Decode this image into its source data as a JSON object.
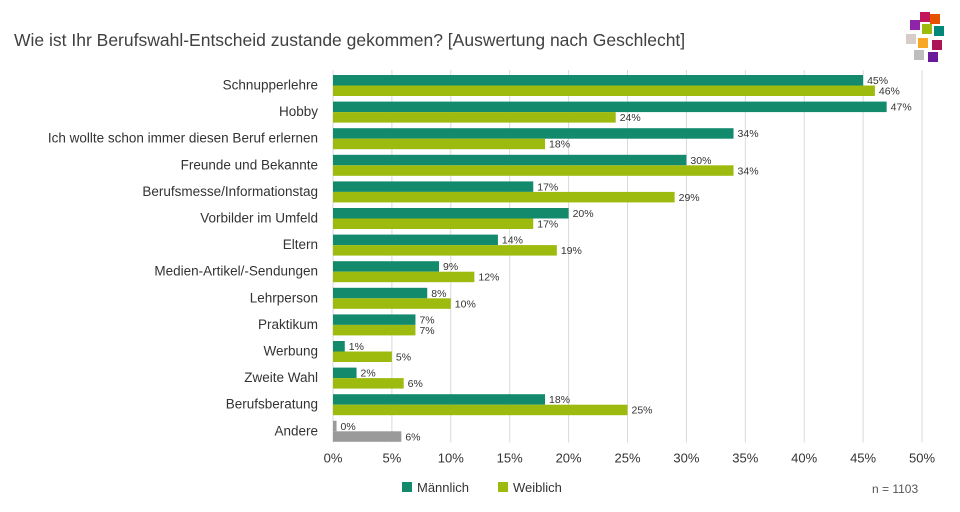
{
  "title": "Wie ist Ihr Berufswahl-Entscheid zustande gekommen? [Auswertung nach Geschlecht]",
  "note": "n = 1103",
  "colors": {
    "maennlich": "#138a6c",
    "weiblich": "#9dbb0f",
    "andere": "#9a9a9a",
    "grid": "#d9d9d9"
  },
  "chart_data": {
    "type": "bar",
    "orientation": "horizontal",
    "title": "Wie ist Ihr Berufswahl-Entscheid zustande gekommen? [Auswertung nach Geschlecht]",
    "categories": [
      "Schnupperlehre",
      "Hobby",
      "Ich wollte schon immer diesen Beruf erlernen",
      "Freunde und Bekannte",
      "Berufsmesse/Informationstag",
      "Vorbilder im Umfeld",
      "Eltern",
      "Medien-Artikel/-Sendungen",
      "Lehrperson",
      "Praktikum",
      "Werbung",
      "Zweite Wahl",
      "Berufsberatung",
      "Andere"
    ],
    "series": [
      {
        "name": "Männlich",
        "values": [
          45,
          47,
          34,
          30,
          17,
          20,
          14,
          9,
          8,
          7,
          1,
          2,
          18,
          0.3
        ],
        "labels": [
          "45%",
          "47%",
          "34%",
          "30%",
          "17%",
          "20%",
          "14%",
          "9%",
          "8%",
          "7%",
          "1%",
          "2%",
          "18%",
          "0%"
        ]
      },
      {
        "name": "Weiblich",
        "values": [
          46,
          24,
          18,
          34,
          29,
          17,
          19,
          12,
          10,
          7,
          5,
          6,
          25,
          5.8
        ],
        "labels": [
          "46%",
          "24%",
          "18%",
          "34%",
          "29%",
          "17%",
          "19%",
          "12%",
          "10%",
          "7%",
          "5%",
          "6%",
          "25%",
          "6%"
        ]
      }
    ],
    "last_category_color": "andere",
    "xlim": [
      0,
      50
    ],
    "xticks": [
      0,
      5,
      10,
      15,
      20,
      25,
      30,
      35,
      40,
      45,
      50
    ],
    "xtick_labels": [
      "0%",
      "5%",
      "10%",
      "15%",
      "20%",
      "25%",
      "30%",
      "35%",
      "40%",
      "45%",
      "50%"
    ],
    "grid": true,
    "legend_position": "bottom"
  }
}
